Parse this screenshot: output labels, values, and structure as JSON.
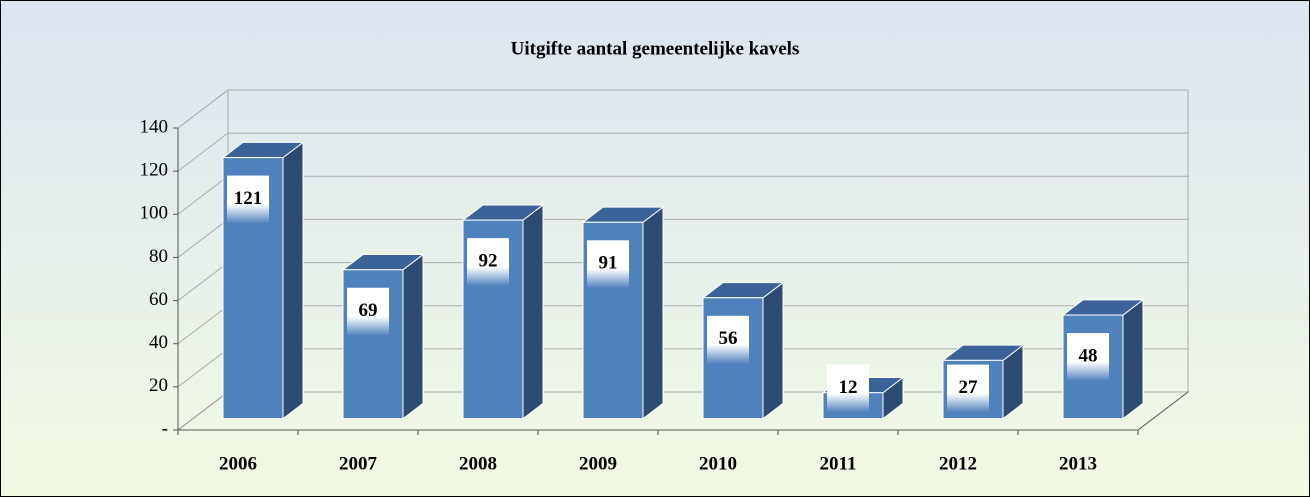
{
  "chart_data": {
    "type": "bar3d",
    "title": "Uitgifte aantal gemeentelijke kavels",
    "categories": [
      "2006",
      "2007",
      "2008",
      "2009",
      "2010",
      "2011",
      "2012",
      "2013"
    ],
    "values": [
      121,
      69,
      92,
      91,
      56,
      12,
      27,
      48
    ],
    "color": "#4f81bd",
    "ylim": [
      0,
      140
    ],
    "yticks": [
      {
        "value": 0,
        "label": "-"
      },
      20,
      40,
      60,
      80,
      100,
      120,
      140
    ],
    "grid": true
  }
}
